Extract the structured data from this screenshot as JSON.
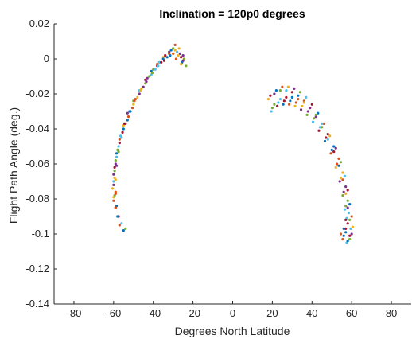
{
  "chart_data": {
    "type": "scatter",
    "title": "Inclination = 120p0 degrees",
    "xlabel": "Degrees North Latitude",
    "ylabel": "Flight Path Angle (deg.)",
    "xlim": [
      -90,
      90
    ],
    "ylim": [
      -0.14,
      0.02
    ],
    "xticks": [
      -80,
      -60,
      -40,
      -20,
      0,
      20,
      40,
      60,
      80
    ],
    "yticks": [
      0.02,
      0,
      -0.02,
      -0.04,
      -0.06,
      -0.08,
      -0.1,
      -0.12,
      -0.14
    ],
    "xtick_labels": [
      "-80",
      "-60",
      "-40",
      "-20",
      "0",
      "20",
      "40",
      "60",
      "80"
    ],
    "ytick_labels": [
      "0.02",
      "0",
      "-0.02",
      "-0.04",
      "-0.06",
      "-0.08",
      "-0.1",
      "-0.12",
      "-0.14"
    ],
    "grid": false,
    "legend": "none",
    "marker_colors": [
      "#0072BD",
      "#D95319",
      "#EDB120",
      "#7E2F8E",
      "#77AC30",
      "#4DBEEE",
      "#A2142F"
    ],
    "series": [
      {
        "x": [
          -55,
          -57,
          -58,
          -59,
          -59.5,
          -60,
          -59.5,
          -58.5,
          -57,
          -55,
          -53,
          -50,
          -47,
          -44,
          -41,
          -38,
          -35,
          -32,
          -30,
          -28,
          -26,
          -25.5
        ],
        "y": [
          -0.098,
          -0.095,
          -0.09,
          -0.085,
          -0.078,
          -0.07,
          -0.062,
          -0.054,
          -0.046,
          -0.038,
          -0.031,
          -0.024,
          -0.018,
          -0.012,
          -0.007,
          -0.003,
          0.001,
          0.004,
          0.006,
          0.004,
          0.001,
          -0.002
        ]
      },
      {
        "x": [
          -54,
          -56,
          -57.5,
          -58.5,
          -59,
          -59,
          -58.5,
          -57.5,
          -56,
          -54,
          -51.5,
          -49,
          -46,
          -43,
          -40,
          -37,
          -34,
          -31,
          -29,
          -27,
          -25
        ],
        "y": [
          -0.097,
          -0.094,
          -0.09,
          -0.084,
          -0.077,
          -0.069,
          -0.061,
          -0.053,
          -0.045,
          -0.037,
          -0.03,
          -0.023,
          -0.017,
          -0.011,
          -0.006,
          -0.002,
          0.002,
          0.005,
          0.008,
          0.006,
          0.002
        ]
      },
      {
        "x": [
          -58,
          -59,
          -60,
          -60,
          -59.5,
          -58.5,
          -57,
          -55,
          -52.5,
          -50,
          -47,
          -44,
          -41,
          -38,
          -35,
          -32,
          -29,
          -26.5,
          -24.5
        ],
        "y": [
          -0.09,
          -0.085,
          -0.079,
          -0.072,
          -0.064,
          -0.056,
          -0.048,
          -0.04,
          -0.033,
          -0.026,
          -0.02,
          -0.014,
          -0.009,
          -0.004,
          0.0,
          0.003,
          0.005,
          0.003,
          0.0
        ]
      },
      {
        "x": [
          -60,
          -60.5,
          -60,
          -59,
          -57.5,
          -55.5,
          -53,
          -50.5,
          -48,
          -45,
          -42,
          -39,
          -36,
          -33,
          -30,
          -27.5,
          -25,
          -23.5
        ],
        "y": [
          -0.081,
          -0.074,
          -0.066,
          -0.058,
          -0.05,
          -0.042,
          -0.035,
          -0.028,
          -0.022,
          -0.016,
          -0.01,
          -0.006,
          -0.002,
          0.001,
          0.003,
          0.002,
          -0.001,
          -0.004
        ]
      },
      {
        "x": [
          -59,
          -59.5,
          -59,
          -58,
          -56.5,
          -54.5,
          -52,
          -49.5,
          -46.5,
          -43.5,
          -40.5,
          -37.5,
          -34.5,
          -31.5,
          -28.5,
          -26
        ],
        "y": [
          -0.076,
          -0.068,
          -0.06,
          -0.052,
          -0.044,
          -0.037,
          -0.03,
          -0.024,
          -0.018,
          -0.013,
          -0.008,
          -0.004,
          -0.001,
          0.002,
          0.0,
          -0.003
        ]
      },
      {
        "x": [
          19,
          22,
          25,
          28,
          31,
          34,
          37,
          40,
          43,
          46,
          49,
          52,
          54.5,
          56.5,
          58,
          59,
          60,
          60.5,
          60,
          59,
          57.5
        ],
        "y": [
          -0.021,
          -0.018,
          -0.016,
          -0.016,
          -0.017,
          -0.019,
          -0.022,
          -0.026,
          -0.031,
          -0.037,
          -0.044,
          -0.051,
          -0.059,
          -0.067,
          -0.075,
          -0.083,
          -0.09,
          -0.096,
          -0.1,
          -0.103,
          -0.105
        ]
      },
      {
        "x": [
          18,
          21,
          24,
          27,
          30,
          33,
          36,
          39,
          42,
          45,
          48,
          51,
          53.5,
          55.5,
          57,
          58,
          59,
          59.5,
          59,
          58
        ],
        "y": [
          -0.023,
          -0.02,
          -0.018,
          -0.018,
          -0.019,
          -0.021,
          -0.024,
          -0.028,
          -0.033,
          -0.039,
          -0.046,
          -0.053,
          -0.061,
          -0.069,
          -0.077,
          -0.085,
          -0.092,
          -0.097,
          -0.101,
          -0.104
        ]
      },
      {
        "x": [
          20,
          23,
          26,
          29,
          32,
          35,
          38,
          41,
          44,
          47,
          50,
          52.5,
          54.5,
          56,
          57,
          57.5,
          57,
          56
        ],
        "y": [
          -0.028,
          -0.025,
          -0.024,
          -0.024,
          -0.025,
          -0.027,
          -0.03,
          -0.034,
          -0.039,
          -0.045,
          -0.052,
          -0.06,
          -0.068,
          -0.076,
          -0.084,
          -0.091,
          -0.097,
          -0.101
        ]
      },
      {
        "x": [
          21,
          24,
          27,
          30,
          33,
          36,
          39,
          42,
          45,
          48,
          51,
          53.5,
          55.5,
          57,
          58,
          58.5,
          58,
          57,
          55.5
        ],
        "y": [
          -0.026,
          -0.023,
          -0.022,
          -0.022,
          -0.023,
          -0.025,
          -0.028,
          -0.032,
          -0.037,
          -0.043,
          -0.05,
          -0.057,
          -0.065,
          -0.073,
          -0.081,
          -0.088,
          -0.094,
          -0.099,
          -0.103
        ]
      },
      {
        "x": [
          19.5,
          22.5,
          25.5,
          28.5,
          31.5,
          34.5,
          37.5,
          40.5,
          43.5,
          46.5,
          49.5,
          52,
          54,
          55.5,
          56.5,
          57,
          56,
          54.5
        ],
        "y": [
          -0.03,
          -0.027,
          -0.026,
          -0.026,
          -0.027,
          -0.029,
          -0.032,
          -0.036,
          -0.041,
          -0.047,
          -0.054,
          -0.062,
          -0.07,
          -0.078,
          -0.086,
          -0.092,
          -0.097,
          -0.1
        ]
      }
    ]
  }
}
